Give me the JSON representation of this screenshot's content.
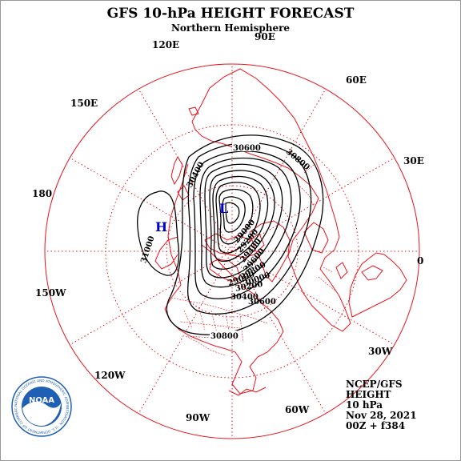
{
  "title": "GFS 10-hPa HEIGHT FORECAST",
  "subtitle": "Northern Hemisphere",
  "longitude_labels": {
    "e90": "90E",
    "e120": "120E",
    "e60": "60E",
    "e150": "150E",
    "e30": "30E",
    "lon180": "180",
    "lon0": "0",
    "w150": "150W",
    "w30": "30W",
    "w120": "120W",
    "w60": "60W",
    "w90": "90W"
  },
  "centers": {
    "high": "H",
    "low": "L"
  },
  "contour_labels": {
    "c30600_top": "30600",
    "c30800_right": "30800",
    "c30400_left": "30400",
    "c31000_left": "31000",
    "c29000_a": "29000",
    "c29200": "29200",
    "c29400": "29400",
    "c29600": "29600",
    "c29800": "29800",
    "c30000": "30000",
    "c30200": "30200",
    "c30400_bottom": "30400",
    "c30600_bottom": "30600",
    "c30800_bottom": "30800",
    "c29000_b": "29000"
  },
  "info": {
    "source": "NCEP/GFS",
    "field": "HEIGHT",
    "level": "10 hPa",
    "date": "Nov 28, 2021",
    "run": "00Z + f384"
  },
  "logo": {
    "text": "NOAA",
    "ring_text": "NATIONAL OCEANIC AND ATMOSPHERIC ADMINISTRATION · U.S. DEPARTMENT OF COMMERCE"
  },
  "colors": {
    "map_lines": "#e8141c",
    "grid": "#e8141c",
    "contours": "#000000",
    "center_labels": "#0000cc",
    "logo_blue": "#1f5fb4"
  }
}
